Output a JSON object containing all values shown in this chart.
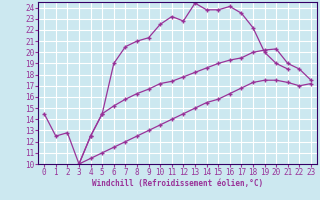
{
  "xlabel": "Windchill (Refroidissement éolien,°C)",
  "bg_color": "#cce8f0",
  "line_color": "#993399",
  "grid_color": "#ffffff",
  "xlim": [
    -0.5,
    23.5
  ],
  "ylim": [
    10,
    24.5
  ],
  "xticks": [
    0,
    1,
    2,
    3,
    4,
    5,
    6,
    7,
    8,
    9,
    10,
    11,
    12,
    13,
    14,
    15,
    16,
    17,
    18,
    19,
    20,
    21,
    22,
    23
  ],
  "yticks": [
    10,
    11,
    12,
    13,
    14,
    15,
    16,
    17,
    18,
    19,
    20,
    21,
    22,
    23,
    24
  ],
  "line1_x": [
    0,
    1,
    2,
    3,
    4,
    5,
    6,
    7,
    8,
    9,
    10,
    11,
    12,
    13,
    14,
    15,
    16,
    17,
    18,
    19,
    20,
    21
  ],
  "line1_y": [
    14.5,
    12.5,
    12.8,
    10.0,
    12.5,
    14.5,
    19.0,
    20.5,
    21.0,
    21.3,
    22.5,
    23.2,
    22.8,
    24.4,
    23.8,
    23.8,
    24.1,
    23.5,
    22.2,
    20.0,
    19.0,
    18.5
  ],
  "line2_x": [
    3,
    4,
    5,
    6,
    7,
    8,
    9,
    10,
    11,
    12,
    13,
    14,
    15,
    16,
    17,
    18,
    19,
    20,
    21,
    22,
    23
  ],
  "line2_y": [
    10.0,
    12.5,
    14.5,
    15.2,
    15.8,
    16.3,
    16.7,
    17.2,
    17.4,
    17.8,
    18.2,
    18.6,
    19.0,
    19.3,
    19.5,
    20.0,
    20.2,
    20.3,
    19.0,
    18.5,
    17.5
  ],
  "line3_x": [
    3,
    4,
    5,
    6,
    7,
    8,
    9,
    10,
    11,
    12,
    13,
    14,
    15,
    16,
    17,
    18,
    19,
    20,
    21,
    22,
    23
  ],
  "line3_y": [
    10.0,
    10.5,
    11.0,
    11.5,
    12.0,
    12.5,
    13.0,
    13.5,
    14.0,
    14.5,
    15.0,
    15.5,
    15.8,
    16.3,
    16.8,
    17.3,
    17.5,
    17.5,
    17.3,
    17.0,
    17.2
  ]
}
